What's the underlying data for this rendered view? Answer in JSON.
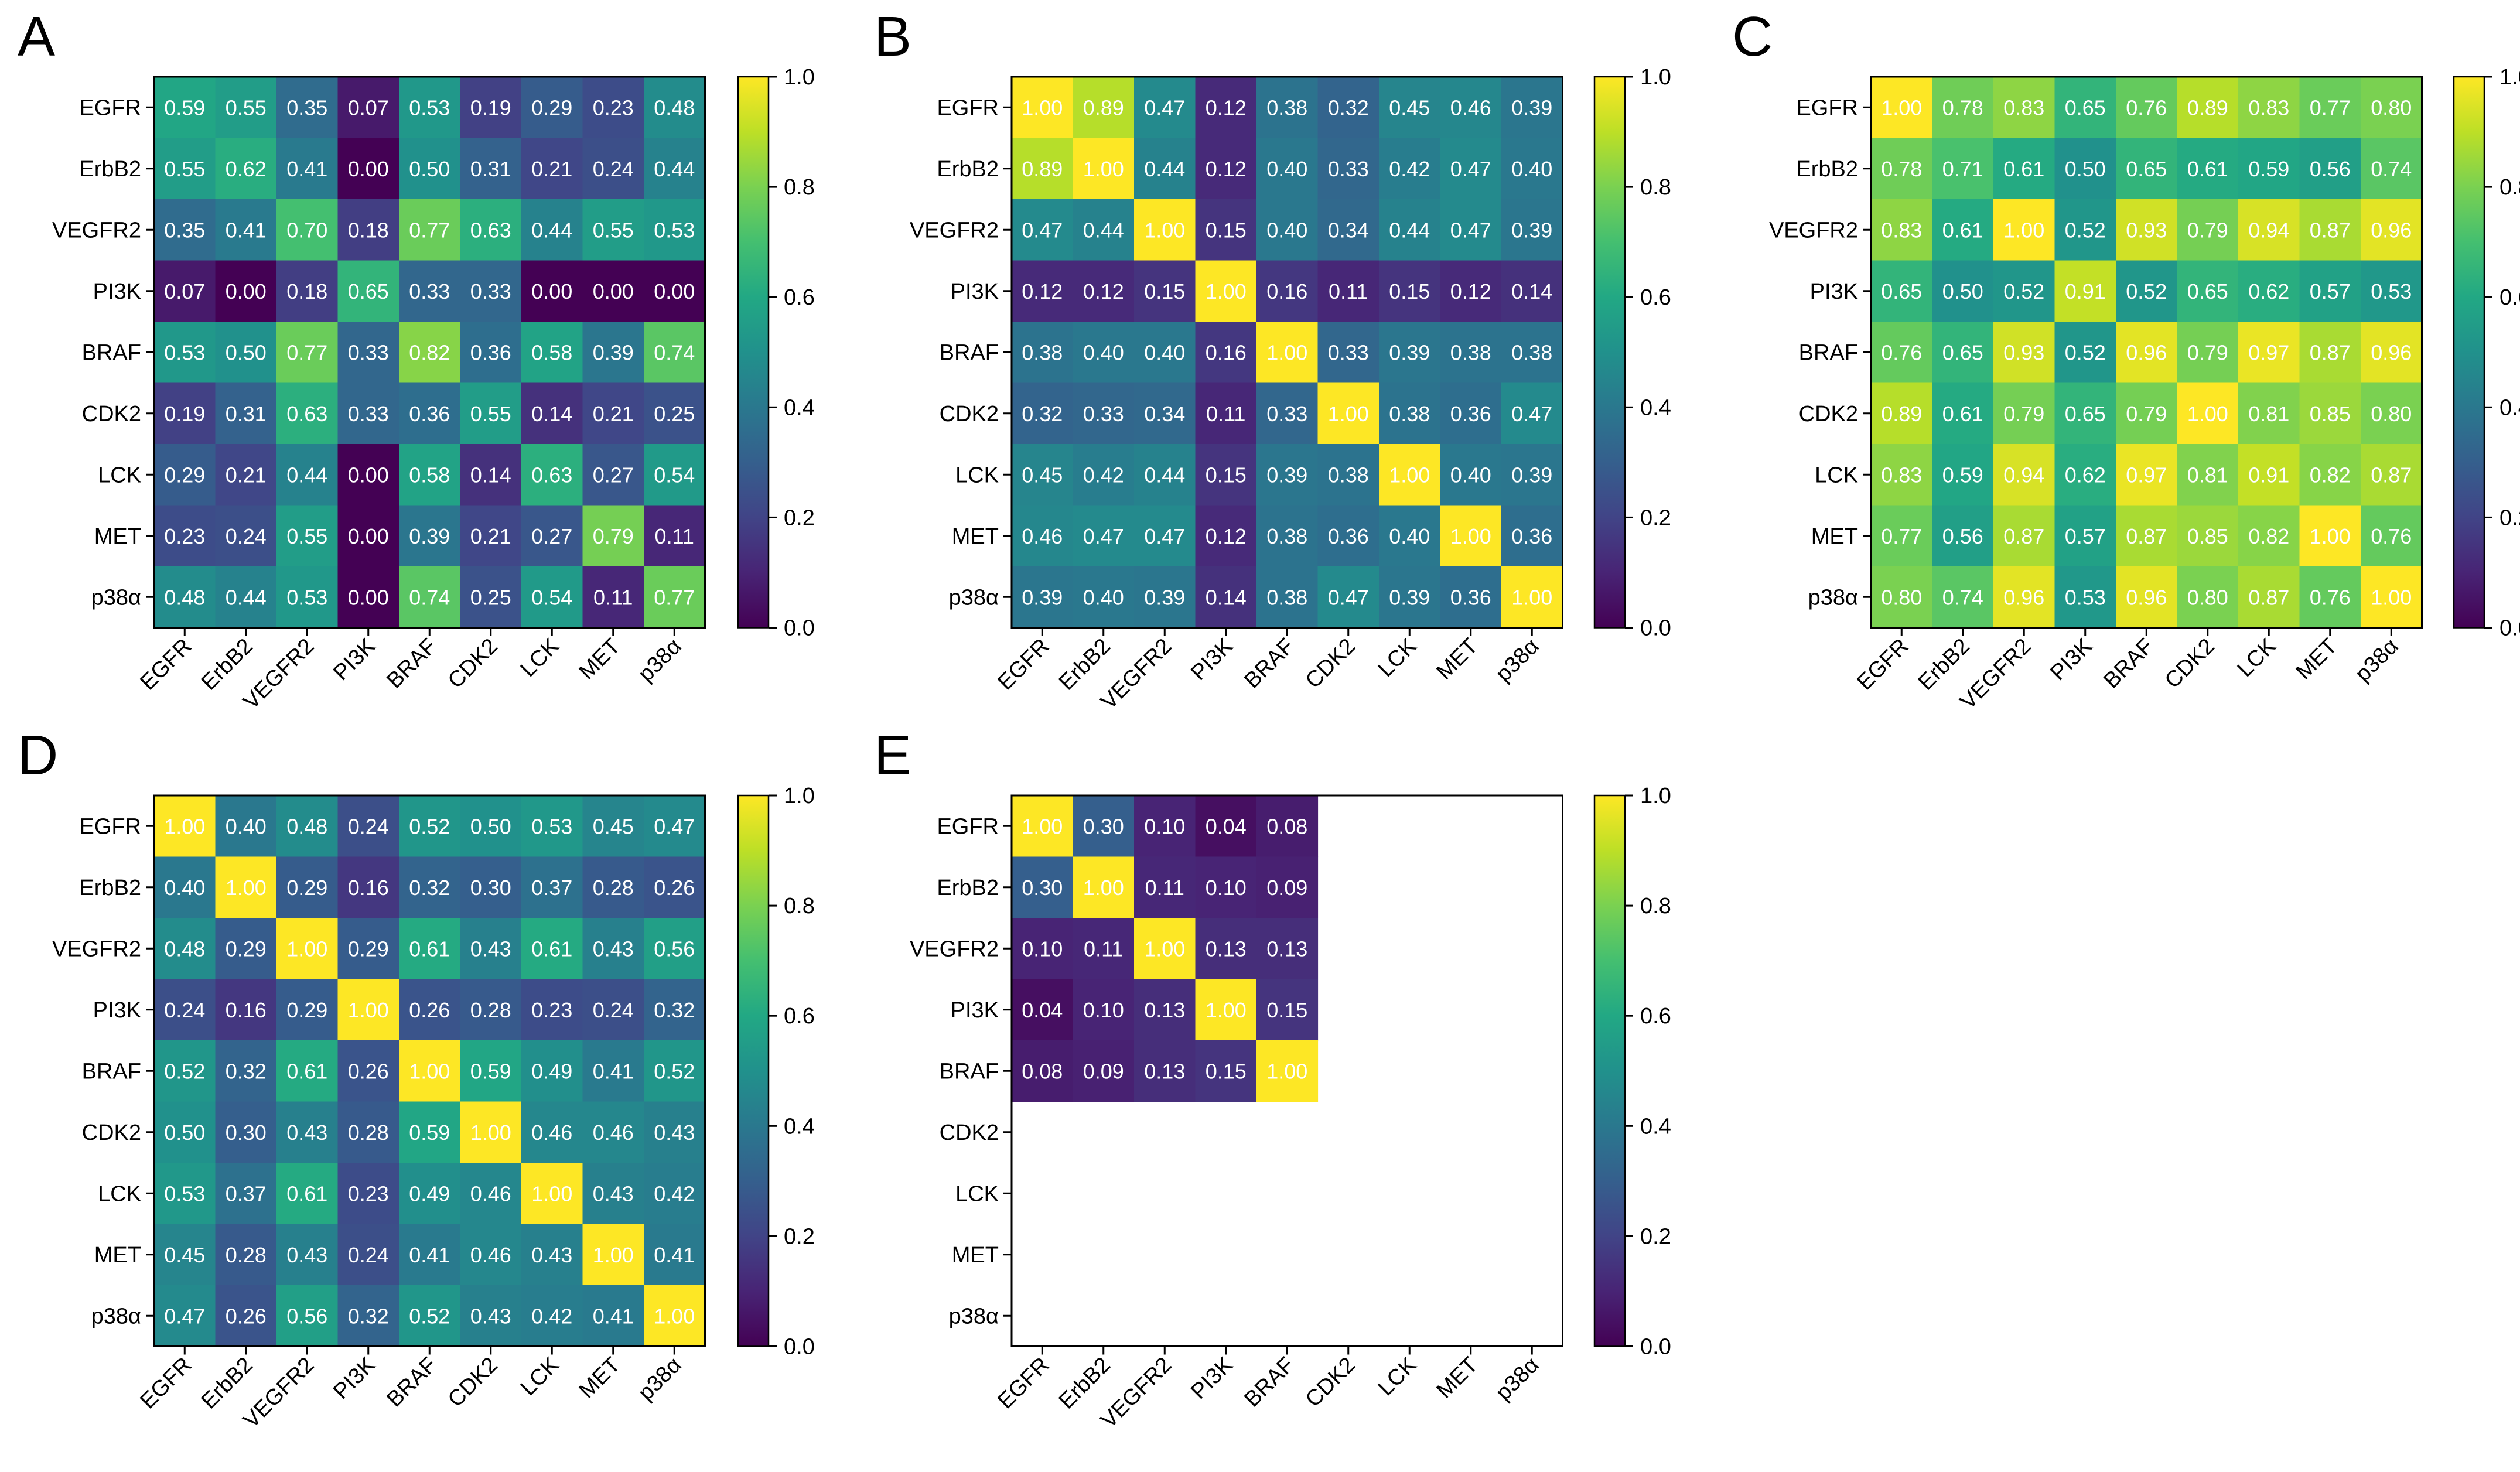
{
  "figure": {
    "labels": [
      "EGFR",
      "ErbB2",
      "VEGFR2",
      "PI3K",
      "BRAF",
      "CDK2",
      "LCK",
      "MET",
      "p38α"
    ],
    "colorbar_ticks": [
      "0.0",
      "0.2",
      "0.4",
      "0.6",
      "0.8",
      "1.0"
    ],
    "colormap": "viridis",
    "colors": {
      "low": "#440154",
      "mid": "#21918c",
      "high": "#fde725",
      "text_light": "#ffffff",
      "text_dark": "#000000"
    }
  },
  "chart_data": [
    {
      "type": "heatmap",
      "panel": "A",
      "labels": [
        "EGFR",
        "ErbB2",
        "VEGFR2",
        "PI3K",
        "BRAF",
        "CDK2",
        "LCK",
        "MET",
        "p38α"
      ],
      "vlim": [
        0.0,
        1.0
      ],
      "values": [
        [
          0.59,
          0.55,
          0.35,
          0.07,
          0.53,
          0.19,
          0.29,
          0.23,
          0.48
        ],
        [
          0.55,
          0.62,
          0.41,
          0.0,
          0.5,
          0.31,
          0.21,
          0.24,
          0.44
        ],
        [
          0.35,
          0.41,
          0.7,
          0.18,
          0.77,
          0.63,
          0.44,
          0.55,
          0.53
        ],
        [
          0.07,
          0.0,
          0.18,
          0.65,
          0.33,
          0.33,
          0.0,
          0.0,
          0.0
        ],
        [
          0.53,
          0.5,
          0.77,
          0.33,
          0.82,
          0.36,
          0.58,
          0.39,
          0.74
        ],
        [
          0.19,
          0.31,
          0.63,
          0.33,
          0.36,
          0.55,
          0.14,
          0.21,
          0.25
        ],
        [
          0.29,
          0.21,
          0.44,
          0.0,
          0.58,
          0.14,
          0.63,
          0.27,
          0.54
        ],
        [
          0.23,
          0.24,
          0.55,
          0.0,
          0.39,
          0.21,
          0.27,
          0.79,
          0.11
        ],
        [
          0.48,
          0.44,
          0.53,
          0.0,
          0.74,
          0.25,
          0.54,
          0.11,
          0.77
        ]
      ]
    },
    {
      "type": "heatmap",
      "panel": "B",
      "labels": [
        "EGFR",
        "ErbB2",
        "VEGFR2",
        "PI3K",
        "BRAF",
        "CDK2",
        "LCK",
        "MET",
        "p38α"
      ],
      "vlim": [
        0.0,
        1.0
      ],
      "values": [
        [
          1.0,
          0.89,
          0.47,
          0.12,
          0.38,
          0.32,
          0.45,
          0.46,
          0.39
        ],
        [
          0.89,
          1.0,
          0.44,
          0.12,
          0.4,
          0.33,
          0.42,
          0.47,
          0.4
        ],
        [
          0.47,
          0.44,
          1.0,
          0.15,
          0.4,
          0.34,
          0.44,
          0.47,
          0.39
        ],
        [
          0.12,
          0.12,
          0.15,
          1.0,
          0.16,
          0.11,
          0.15,
          0.12,
          0.14
        ],
        [
          0.38,
          0.4,
          0.4,
          0.16,
          1.0,
          0.33,
          0.39,
          0.38,
          0.38
        ],
        [
          0.32,
          0.33,
          0.34,
          0.11,
          0.33,
          1.0,
          0.38,
          0.36,
          0.47
        ],
        [
          0.45,
          0.42,
          0.44,
          0.15,
          0.39,
          0.38,
          1.0,
          0.4,
          0.39
        ],
        [
          0.46,
          0.47,
          0.47,
          0.12,
          0.38,
          0.36,
          0.4,
          1.0,
          0.36
        ],
        [
          0.39,
          0.4,
          0.39,
          0.14,
          0.38,
          0.47,
          0.39,
          0.36,
          1.0
        ]
      ]
    },
    {
      "type": "heatmap",
      "panel": "C",
      "labels": [
        "EGFR",
        "ErbB2",
        "VEGFR2",
        "PI3K",
        "BRAF",
        "CDK2",
        "LCK",
        "MET",
        "p38α"
      ],
      "vlim": [
        0.0,
        1.0
      ],
      "values": [
        [
          1.0,
          0.78,
          0.83,
          0.65,
          0.76,
          0.89,
          0.83,
          0.77,
          0.8
        ],
        [
          0.78,
          0.71,
          0.61,
          0.5,
          0.65,
          0.61,
          0.59,
          0.56,
          0.74
        ],
        [
          0.83,
          0.61,
          1.0,
          0.52,
          0.93,
          0.79,
          0.94,
          0.87,
          0.96
        ],
        [
          0.65,
          0.5,
          0.52,
          0.91,
          0.52,
          0.65,
          0.62,
          0.57,
          0.53
        ],
        [
          0.76,
          0.65,
          0.93,
          0.52,
          0.96,
          0.79,
          0.97,
          0.87,
          0.96
        ],
        [
          0.89,
          0.61,
          0.79,
          0.65,
          0.79,
          1.0,
          0.81,
          0.85,
          0.8
        ],
        [
          0.83,
          0.59,
          0.94,
          0.62,
          0.97,
          0.81,
          0.91,
          0.82,
          0.87
        ],
        [
          0.77,
          0.56,
          0.87,
          0.57,
          0.87,
          0.85,
          0.82,
          1.0,
          0.76
        ],
        [
          0.8,
          0.74,
          0.96,
          0.53,
          0.96,
          0.8,
          0.87,
          0.76,
          1.0
        ]
      ]
    },
    {
      "type": "heatmap",
      "panel": "D",
      "labels": [
        "EGFR",
        "ErbB2",
        "VEGFR2",
        "PI3K",
        "BRAF",
        "CDK2",
        "LCK",
        "MET",
        "p38α"
      ],
      "vlim": [
        0.0,
        1.0
      ],
      "values": [
        [
          1.0,
          0.4,
          0.48,
          0.24,
          0.52,
          0.5,
          0.53,
          0.45,
          0.47
        ],
        [
          0.4,
          1.0,
          0.29,
          0.16,
          0.32,
          0.3,
          0.37,
          0.28,
          0.26
        ],
        [
          0.48,
          0.29,
          1.0,
          0.29,
          0.61,
          0.43,
          0.61,
          0.43,
          0.56
        ],
        [
          0.24,
          0.16,
          0.29,
          1.0,
          0.26,
          0.28,
          0.23,
          0.24,
          0.32
        ],
        [
          0.52,
          0.32,
          0.61,
          0.26,
          1.0,
          0.59,
          0.49,
          0.41,
          0.52
        ],
        [
          0.5,
          0.3,
          0.43,
          0.28,
          0.59,
          1.0,
          0.46,
          0.46,
          0.43
        ],
        [
          0.53,
          0.37,
          0.61,
          0.23,
          0.49,
          0.46,
          1.0,
          0.43,
          0.42
        ],
        [
          0.45,
          0.28,
          0.43,
          0.24,
          0.41,
          0.46,
          0.43,
          1.0,
          0.41
        ],
        [
          0.47,
          0.26,
          0.56,
          0.32,
          0.52,
          0.43,
          0.42,
          0.41,
          1.0
        ]
      ]
    },
    {
      "type": "heatmap",
      "panel": "E",
      "labels": [
        "EGFR",
        "ErbB2",
        "VEGFR2",
        "PI3K",
        "BRAF",
        "CDK2",
        "LCK",
        "MET",
        "p38α"
      ],
      "vlim": [
        0.0,
        1.0
      ],
      "values": [
        [
          1.0,
          0.3,
          0.1,
          0.04,
          0.08,
          null,
          null,
          null,
          null
        ],
        [
          0.3,
          1.0,
          0.11,
          0.1,
          0.09,
          null,
          null,
          null,
          null
        ],
        [
          0.1,
          0.11,
          1.0,
          0.13,
          0.13,
          null,
          null,
          null,
          null
        ],
        [
          0.04,
          0.1,
          0.13,
          1.0,
          0.15,
          null,
          null,
          null,
          null
        ],
        [
          0.08,
          0.09,
          0.13,
          0.15,
          1.0,
          null,
          null,
          null,
          null
        ],
        [
          null,
          null,
          null,
          null,
          null,
          null,
          null,
          null,
          null
        ],
        [
          null,
          null,
          null,
          null,
          null,
          null,
          null,
          null,
          null
        ],
        [
          null,
          null,
          null,
          null,
          null,
          null,
          null,
          null,
          null
        ],
        [
          null,
          null,
          null,
          null,
          null,
          null,
          null,
          null,
          null
        ]
      ]
    }
  ]
}
